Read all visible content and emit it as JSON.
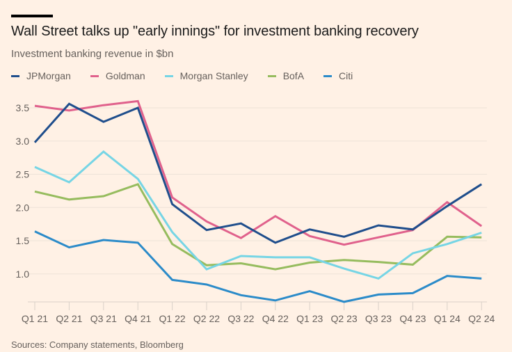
{
  "header": {
    "title": "Wall Street talks up \"early innings\" for investment banking recovery",
    "subtitle": "Investment banking revenue in $bn"
  },
  "footer": {
    "source": "Sources: Company statements, Bloomberg"
  },
  "chart_data": {
    "type": "line",
    "title": "Wall Street talks up \"early innings\" for investment banking recovery",
    "subtitle": "Investment banking revenue in $bn",
    "xlabel": "",
    "ylabel": "",
    "x": [
      "Q1 21",
      "Q2 21",
      "Q3 21",
      "Q4 21",
      "Q1 22",
      "Q2 22",
      "Q3 22",
      "Q4 22",
      "Q1 23",
      "Q2 23",
      "Q3 23",
      "Q4 23",
      "Q1 24",
      "Q2 24"
    ],
    "yticks": [
      1.0,
      1.5,
      2.0,
      2.5,
      3.0,
      3.5
    ],
    "ytick_labels": [
      "1.0",
      "1.5",
      "2.0",
      "2.5",
      "3.0",
      "3.5"
    ],
    "ylim": [
      0.58,
      3.65
    ],
    "grid": "horizontal",
    "legend_position": "top-left",
    "series": [
      {
        "name": "JPMorgan",
        "color": "#1f4e8c",
        "values": [
          2.98,
          3.56,
          3.29,
          3.5,
          2.05,
          1.66,
          1.76,
          1.47,
          1.67,
          1.56,
          1.73,
          1.67,
          2.02,
          2.35
        ]
      },
      {
        "name": "Goldman",
        "color": "#e0618c",
        "values": [
          3.53,
          3.46,
          3.54,
          3.6,
          2.15,
          1.79,
          1.54,
          1.87,
          1.57,
          1.44,
          1.55,
          1.66,
          2.08,
          1.72
        ]
      },
      {
        "name": "Morgan Stanley",
        "color": "#76d5e5",
        "values": [
          2.61,
          2.38,
          2.84,
          2.43,
          1.63,
          1.07,
          1.27,
          1.25,
          1.25,
          1.08,
          0.93,
          1.31,
          1.45,
          1.62
        ]
      },
      {
        "name": "BofA",
        "color": "#96bc5e",
        "values": [
          2.24,
          2.12,
          2.17,
          2.35,
          1.45,
          1.13,
          1.16,
          1.07,
          1.17,
          1.21,
          1.18,
          1.14,
          1.56,
          1.55
        ]
      },
      {
        "name": "Citi",
        "color": "#2b8bc9",
        "values": [
          1.64,
          1.4,
          1.51,
          1.47,
          0.91,
          0.84,
          0.68,
          0.6,
          0.74,
          0.58,
          0.69,
          0.71,
          0.97,
          0.93
        ]
      }
    ]
  }
}
